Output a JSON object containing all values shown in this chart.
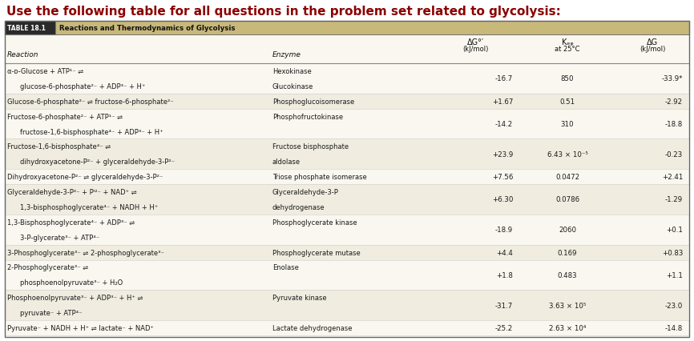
{
  "title": "Use the following table for all questions in the problem set related to glycolysis:",
  "table_title_label": "TABLE 18.1",
  "table_title_text": "Reactions and Thermodynamics of Glycolysis",
  "table_header_bg": "#c8b87a",
  "label_bg": "#2a2a2a",
  "title_color": "#8b0000",
  "body_bg": "#faf7f0",
  "alt_row_bg": "#f0ece0",
  "border_color": "#999999",
  "text_color": "#1a1a1a",
  "rows": [
    {
      "reaction_lines": [
        "α-ᴅ-Glucose + ATP¹⁻ ⇌",
        "        glucose-6-phosphate²⁻ + ADP³⁻ + H⁺"
      ],
      "enzyme_lines": [
        "Hexokinase",
        "Glucokinase"
      ],
      "dg0": "-16.7",
      "keq": "850",
      "dg": "-33.9*"
    },
    {
      "reaction_lines": [
        "Glucose-6-phosphate²⁻ ⇌ fructose-6-phosphate²⁻"
      ],
      "enzyme_lines": [
        "Phosphoglucoisomerase"
      ],
      "dg0": "+1.67",
      "keq": "0.51",
      "dg": "-2.92"
    },
    {
      "reaction_lines": [
        "Fructose-6-phosphate²⁻ + ATP¹⁻ ⇌",
        "        fructose-1,6-bisphosphate⁴⁻ + ADP³⁻ + H⁺"
      ],
      "enzyme_lines": [
        "Phosphofructokinase"
      ],
      "dg0": "-14.2",
      "keq": "310",
      "dg": "-18.8"
    },
    {
      "reaction_lines": [
        "Fructose-1,6-bisphosphate⁴⁻ ⇌",
        "        dihydroxyacetone-P²⁻ + glyceraldehyde-3-P²⁻"
      ],
      "enzyme_lines": [
        "Fructose bisphosphate",
        "aldolase"
      ],
      "dg0": "+23.9",
      "keq": "6.43 × 10⁻⁵",
      "dg": "-0.23"
    },
    {
      "reaction_lines": [
        "Dihydroxyacetone-P²⁻ ⇌ glyceraldehyde-3-P²⁻"
      ],
      "enzyme_lines": [
        "Triose phosphate isomerase"
      ],
      "dg0": "+7.56",
      "keq": "0.0472",
      "dg": "+2.41"
    },
    {
      "reaction_lines": [
        "Glyceraldehyde-3-P²⁻ + Pᴵ²⁻ + NAD⁺ ⇌",
        "        1,3-bisphosphoglycerate⁴⁻ + NADH + H⁺"
      ],
      "enzyme_lines": [
        "Glyceraldehyde-3-P",
        "dehydrogenase"
      ],
      "dg0": "+6.30",
      "keq": "0.0786",
      "dg": "-1.29"
    },
    {
      "reaction_lines": [
        "1,3-Bisphosphoglycerate⁴⁻ + ADP³⁻ ⇌",
        "        3-P-glycerate³⁻ + ATP⁴⁻"
      ],
      "enzyme_lines": [
        "Phosphoglycerate kinase"
      ],
      "dg0": "-18.9",
      "keq": "2060",
      "dg": "+0.1"
    },
    {
      "reaction_lines": [
        "3-Phosphoglycerate³⁻ ⇌ 2-phosphoglycerate³⁻"
      ],
      "enzyme_lines": [
        "Phosphoglycerate mutase"
      ],
      "dg0": "+4.4",
      "keq": "0.169",
      "dg": "+0.83"
    },
    {
      "reaction_lines": [
        "2-Phosphoglycerate³⁻ ⇌",
        "        phosphoenolpyruvate³⁻ + H₂O"
      ],
      "enzyme_lines": [
        "Enolase"
      ],
      "dg0": "+1.8",
      "keq": "0.483",
      "dg": "+1.1"
    },
    {
      "reaction_lines": [
        "Phosphoenolpyruvate³⁻ + ADP³⁻ + H⁺ ⇌",
        "        pyruvate⁻ + ATP⁴⁻"
      ],
      "enzyme_lines": [
        "Pyruvate kinase"
      ],
      "dg0": "-31.7",
      "keq": "3.63 × 10⁵",
      "dg": "-23.0"
    },
    {
      "reaction_lines": [
        "Pyruvate⁻ + NADH + H⁺ ⇌ lactate⁻ + NAD⁺"
      ],
      "enzyme_lines": [
        "Lactate dehydrogenase"
      ],
      "dg0": "-25.2",
      "keq": "2.63 × 10⁴",
      "dg": "-14.8"
    }
  ]
}
